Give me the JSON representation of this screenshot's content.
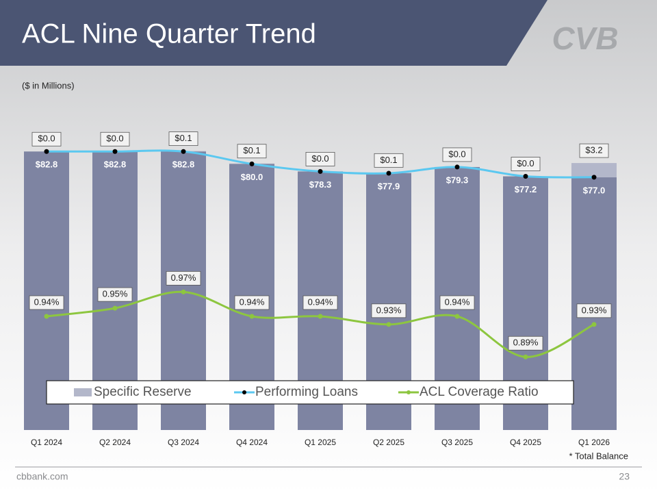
{
  "title": "ACL Nine Quarter Trend",
  "logo": "CVB",
  "footer": {
    "site": "cbbank.com",
    "page": "23"
  },
  "chart_data": {
    "type": "stacked-bar-line",
    "subtitle": "($ in Millions)",
    "footnote": "* Total Balance",
    "categories": [
      "Q1 2024",
      "Q2 2024",
      "Q3 2024",
      "Q4 2024",
      "Q1 2025",
      "Q2 2025",
      "Q3 2025",
      "Q4 2025",
      "Q1 2026"
    ],
    "ylim": [
      20,
      85
    ],
    "y2lim": [
      0.8,
      1.155
    ],
    "legend": "bottom",
    "series": [
      {
        "name": "Specific Reserve",
        "color": "#b3b7ca",
        "values": [
          0.0,
          0.0,
          0.1,
          0.1,
          0.0,
          0.1,
          0.0,
          0.0,
          3.2
        ],
        "value_labels": [
          "$0.0",
          "$0.0",
          "$0.1",
          "$0.1",
          "$0.0",
          "$0.1",
          "$0.0",
          "$0.0",
          "$3.2"
        ]
      },
      {
        "name": "Performing Loans",
        "color": "#5bc8f0",
        "bar_color": "#7e84a2",
        "values": [
          82.8,
          82.8,
          82.8,
          80.0,
          78.3,
          77.9,
          79.3,
          77.2,
          77.0
        ],
        "value_labels": [
          "$82.8",
          "$82.8",
          "$82.8",
          "$80.0",
          "$78.3",
          "$77.9",
          "$79.3",
          "$77.2",
          "$77.0"
        ]
      },
      {
        "name": "ACL Coverage Ratio",
        "color": "#8dc63f",
        "axis": "y2",
        "values": [
          0.94,
          0.95,
          0.97,
          0.94,
          0.94,
          0.93,
          0.94,
          0.89,
          0.93
        ],
        "value_labels": [
          "0.94%",
          "0.95%",
          "0.97%",
          "0.94%",
          "0.94%",
          "0.93%",
          "0.94%",
          "0.89%",
          "0.93%"
        ]
      }
    ]
  }
}
